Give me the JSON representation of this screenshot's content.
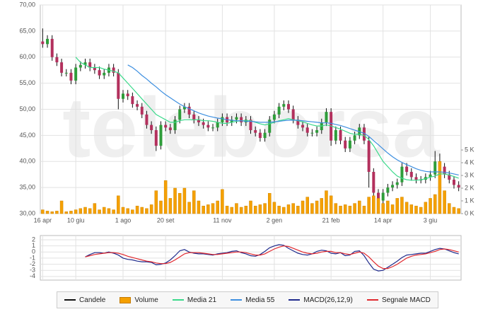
{
  "watermark": "teleborsa",
  "chart_data": [
    {
      "type": "candlestick",
      "categories": [
        "16 apr",
        null,
        null,
        null,
        null,
        null,
        null,
        "10 giu",
        null,
        null,
        null,
        null,
        null,
        null,
        null,
        null,
        null,
        "1 ago",
        null,
        null,
        null,
        null,
        null,
        null,
        null,
        null,
        "20 set",
        null,
        null,
        null,
        null,
        null,
        null,
        null,
        null,
        null,
        null,
        null,
        "11 nov",
        null,
        null,
        null,
        null,
        null,
        null,
        null,
        null,
        null,
        null,
        "2 gen",
        null,
        null,
        null,
        null,
        null,
        null,
        null,
        null,
        null,
        null,
        null,
        "21 feb",
        null,
        null,
        null,
        null,
        null,
        null,
        null,
        null,
        null,
        null,
        "14 apr",
        null,
        null,
        null,
        null,
        null,
        null,
        null,
        null,
        null,
        "3 giu",
        null,
        null,
        null,
        null,
        null,
        null
      ],
      "ylim": [
        30,
        70
      ],
      "yticks": [
        {
          "value": 30,
          "label": "30,00"
        },
        {
          "value": 35,
          "label": "35,00"
        },
        {
          "value": 40,
          "label": "40,00"
        },
        {
          "value": 45,
          "label": "45,00"
        },
        {
          "value": 50,
          "label": "50,00"
        },
        {
          "value": 55,
          "label": "55,00"
        },
        {
          "value": 60,
          "label": "60,00"
        },
        {
          "value": 65,
          "label": "65,00"
        },
        {
          "value": 70,
          "label": "70,00"
        }
      ],
      "y2lim": [
        0,
        16400
      ],
      "y2ticks": [
        {
          "value": 0,
          "label": "0 K"
        },
        {
          "value": 1000,
          "label": "1 K"
        },
        {
          "value": 2000,
          "label": "2 K"
        },
        {
          "value": 3000,
          "label": "3 K"
        },
        {
          "value": 4000,
          "label": "4 K"
        },
        {
          "value": 5000,
          "label": "5 K"
        }
      ],
      "grid": true,
      "up_color": "#2e9d3a",
      "down_color": "#b3305d",
      "series": [
        {
          "name": "Candele",
          "color": "#111111",
          "open": [
            63,
            62.5,
            63.5,
            60,
            59,
            57,
            57,
            55.5,
            58,
            58.5,
            59,
            58,
            57.5,
            56.5,
            57,
            58,
            57,
            52,
            53,
            52.5,
            51,
            50.5,
            49,
            47,
            46,
            43,
            47,
            46.5,
            46,
            48,
            50,
            50.5,
            49,
            48,
            47.5,
            47,
            46.5,
            46.5,
            47.5,
            48.5,
            47.5,
            48,
            48.5,
            47.5,
            48,
            46,
            45.5,
            44.5,
            45.5,
            48,
            49,
            50.5,
            51,
            50,
            48,
            47,
            46.5,
            45.5,
            45.5,
            46,
            47.5,
            49.5,
            44,
            46,
            44,
            42.5,
            44,
            45,
            46.5,
            44,
            38,
            34,
            32.5,
            34,
            35,
            35.5,
            36,
            39,
            38,
            37,
            36.5,
            36.5,
            37,
            37.5,
            40,
            39,
            37.5,
            36.5,
            35.5
          ],
          "high": [
            65.5,
            64.2,
            64.2,
            60.7,
            59.7,
            57.7,
            57.7,
            58.7,
            59.2,
            59.7,
            59.7,
            58.7,
            58.2,
            57.7,
            58.7,
            58.7,
            57.7,
            53.7,
            53.7,
            53.2,
            51.7,
            51.2,
            49.7,
            47.7,
            46.7,
            47.7,
            47.7,
            47.2,
            48.7,
            50.7,
            51.2,
            51.2,
            49.7,
            48.7,
            48.2,
            47.7,
            47.2,
            48.2,
            49.2,
            49.2,
            48.7,
            49.2,
            49.2,
            48.7,
            48.7,
            46.7,
            46.2,
            46.2,
            48.7,
            49.7,
            51.2,
            51.7,
            51.7,
            50.7,
            48.7,
            47.7,
            47.2,
            46.2,
            46.7,
            48.2,
            50.2,
            50.2,
            46.7,
            46.7,
            44.7,
            44.7,
            45.7,
            47.2,
            47.2,
            44.7,
            38.7,
            34.7,
            34.7,
            35.7,
            36.2,
            36.7,
            39.7,
            39.7,
            38.7,
            37.7,
            37.2,
            37.7,
            38.2,
            42,
            41.5,
            39.7,
            38.2,
            37.2,
            36.2
          ],
          "low": [
            61.8,
            61.8,
            59.3,
            58.3,
            56.3,
            56.3,
            54.8,
            54.8,
            57.3,
            57.8,
            57.3,
            56.8,
            55.8,
            55.8,
            56.3,
            56.3,
            50,
            51.3,
            51.8,
            50.3,
            49.8,
            48.3,
            46.3,
            45.3,
            42,
            42.3,
            45.8,
            45.3,
            45.3,
            47.3,
            49.3,
            48.3,
            47.3,
            46.8,
            46.3,
            45.8,
            45.8,
            45.8,
            46.8,
            46.8,
            46.8,
            47.3,
            46.8,
            46.8,
            45.3,
            44.8,
            43.8,
            43.8,
            44.8,
            47.3,
            48.3,
            49.8,
            49.3,
            47.3,
            46.3,
            45.8,
            44.8,
            44.8,
            44.8,
            45.3,
            46.8,
            43,
            43.3,
            43.3,
            41.8,
            41.8,
            43.3,
            44.3,
            43.3,
            35,
            33.3,
            31.8,
            31.8,
            33.3,
            34.3,
            34.8,
            35.3,
            37.3,
            36.3,
            35.8,
            35.8,
            35.8,
            36.3,
            36.8,
            38.3,
            36.8,
            35.8,
            34.8,
            34.3
          ],
          "close": [
            62.5,
            63.5,
            60,
            59,
            57,
            57,
            55.5,
            58,
            58.5,
            59,
            58,
            57.5,
            56.5,
            57,
            58,
            57,
            52,
            53,
            52.5,
            51,
            50.5,
            49,
            47,
            46,
            43,
            47,
            46.5,
            46,
            48,
            50,
            50.5,
            49,
            48,
            47.5,
            47,
            46.5,
            46.5,
            47.5,
            48.5,
            47.5,
            48,
            48.5,
            47.5,
            48,
            46,
            45.5,
            44.5,
            45.5,
            48,
            49,
            50.5,
            51,
            50,
            48,
            47,
            46.5,
            45.5,
            45.5,
            46,
            47.5,
            49.5,
            44,
            46,
            44,
            42.5,
            44,
            45,
            46.5,
            44,
            38,
            34,
            32.5,
            34,
            35,
            35.5,
            36,
            39,
            38,
            37,
            36.5,
            36.5,
            37,
            37.5,
            40,
            39,
            37.5,
            36.5,
            35.5,
            35
          ]
        },
        {
          "name": "Volume",
          "color": "#f5a000",
          "axis": "y2",
          "values": [
            300,
            200,
            150,
            200,
            1000,
            150,
            200,
            300,
            400,
            500,
            400,
            800,
            300,
            500,
            400,
            300,
            1400,
            500,
            400,
            300,
            600,
            500,
            400,
            700,
            1800,
            1000,
            2600,
            1200,
            2000,
            1600,
            2000,
            900,
            1800,
            1000,
            600,
            700,
            800,
            1000,
            1900,
            600,
            500,
            800,
            500,
            600,
            1000,
            600,
            700,
            800,
            1600,
            900,
            600,
            500,
            700,
            800,
            600,
            1000,
            1300,
            800,
            1000,
            1200,
            1800,
            1400,
            800,
            600,
            700,
            600,
            800,
            1000,
            600,
            1300,
            1400,
            1200,
            800,
            1000,
            700,
            1200,
            1300,
            900,
            700,
            600,
            500,
            900,
            1200,
            1500,
            4100,
            1800,
            800,
            500,
            400
          ]
        },
        {
          "name": "Media 21",
          "color": "#3ad98a",
          "values": [
            null,
            null,
            null,
            null,
            null,
            null,
            null,
            60,
            59,
            58.5,
            58,
            58,
            58,
            57.7,
            57.5,
            57.3,
            57,
            56,
            55,
            54,
            53,
            52,
            51,
            50,
            49,
            48.5,
            48,
            47.5,
            47.5,
            47.8,
            48,
            48,
            48,
            48,
            47.8,
            47.8,
            47.7,
            47.5,
            47.3,
            47.3,
            47.5,
            47.7,
            47.8,
            47.8,
            47.8,
            47.5,
            47.2,
            47,
            47.2,
            47.5,
            47.8,
            48,
            48.2,
            48,
            47.8,
            47.6,
            47.3,
            47,
            46.8,
            46.8,
            47,
            46.8,
            46.5,
            46.2,
            45.8,
            45.4,
            45.2,
            45.2,
            45,
            44.2,
            43,
            41.5,
            40,
            39,
            38,
            37.2,
            36.8,
            36.5,
            36.4,
            36.4,
            36.5,
            36.7,
            37,
            37.2,
            37.6,
            37.6,
            37.4,
            37.1,
            36.8
          ]
        },
        {
          "name": "Media 55",
          "color": "#3d8fe0",
          "values": [
            null,
            null,
            null,
            null,
            null,
            null,
            null,
            null,
            null,
            null,
            null,
            null,
            null,
            null,
            null,
            null,
            null,
            null,
            58.5,
            58,
            57.3,
            56.5,
            55.8,
            55,
            54.3,
            53.5,
            52.8,
            52.2,
            51.6,
            51,
            50.5,
            50.1,
            49.7,
            49.3,
            49,
            48.7,
            48.5,
            48.3,
            48.2,
            48,
            47.9,
            47.8,
            47.8,
            47.7,
            47.7,
            47.6,
            47.5,
            47.5,
            47.5,
            47.6,
            47.7,
            47.8,
            47.9,
            47.9,
            47.9,
            47.8,
            47.7,
            47.6,
            47.5,
            47.4,
            47.4,
            47.3,
            47.1,
            46.9,
            46.6,
            46.3,
            46,
            45.7,
            45.4,
            44.8,
            44,
            43.2,
            42.4,
            41.6,
            40.9,
            40.3,
            39.8,
            39.4,
            39,
            38.6,
            38.3,
            38.1,
            38,
            38,
            38,
            37.9,
            37.8,
            37.6,
            37.4
          ]
        }
      ]
    },
    {
      "type": "line",
      "ylim": [
        -4.6,
        2.7
      ],
      "yticks": [
        2,
        1,
        0,
        -1,
        -2,
        -3,
        -4
      ],
      "grid": true,
      "series": [
        {
          "name": "MACD(26,12,9)",
          "color": "#1f2a8c",
          "values": [
            null,
            null,
            null,
            null,
            null,
            null,
            null,
            null,
            null,
            -0.8,
            -0.4,
            -0.1,
            -0.1,
            -0.2,
            0,
            -0.2,
            -0.5,
            -1,
            -1.2,
            -1.3,
            -1.5,
            -1.6,
            -1.6,
            -1.7,
            -2.1,
            -2,
            -1.8,
            -1.3,
            -0.6,
            0.2,
            0.4,
            0,
            -0.2,
            -0.3,
            -0.3,
            -0.4,
            -0.5,
            -0.3,
            -0.2,
            -0.1,
            0.1,
            0.2,
            -0.1,
            -0.3,
            -0.6,
            -0.7,
            -0.4,
            0.1,
            0.7,
            1,
            1.2,
            1.1,
            0.6,
            0.2,
            -0.2,
            -0.4,
            -0.5,
            -0.3,
            0.1,
            0.3,
            0.2,
            -0.2,
            -0.3,
            -0.1,
            -0.6,
            -0.5,
            0.1,
            0.2,
            -0.6,
            -1.8,
            -2.8,
            -3.1,
            -3,
            -2.5,
            -2,
            -1.5,
            -0.9,
            -0.5,
            -0.4,
            -0.3,
            -0.2,
            -0.2,
            0.1,
            0.4,
            0.6,
            0.5,
            0.2,
            -0.1,
            -0.3
          ]
        },
        {
          "name": "Segnale MACD",
          "color": "#e0282e",
          "values": [
            null,
            null,
            null,
            null,
            null,
            null,
            null,
            null,
            null,
            -0.8,
            -0.6,
            -0.4,
            -0.3,
            -0.2,
            -0.1,
            -0.1,
            -0.2,
            -0.4,
            -0.7,
            -0.9,
            -1.1,
            -1.3,
            -1.5,
            -1.6,
            -1.8,
            -1.9,
            -1.9,
            -1.7,
            -1.3,
            -0.8,
            -0.3,
            -0.1,
            -0.1,
            -0.1,
            -0.2,
            -0.3,
            -0.4,
            -0.4,
            -0.3,
            -0.2,
            -0.1,
            0,
            0,
            -0.1,
            -0.3,
            -0.5,
            -0.5,
            -0.3,
            0.1,
            0.5,
            0.8,
            1,
            0.9,
            0.6,
            0.3,
            0,
            -0.2,
            -0.3,
            -0.2,
            0,
            0.1,
            0.1,
            -0.1,
            -0.1,
            -0.3,
            -0.4,
            -0.2,
            0,
            -0.2,
            -0.8,
            -1.6,
            -2.3,
            -2.7,
            -2.7,
            -2.4,
            -2,
            -1.5,
            -1,
            -0.7,
            -0.5,
            -0.4,
            -0.3,
            -0.1,
            0.1,
            0.4,
            0.5,
            0.4,
            0.2,
            0
          ]
        }
      ]
    }
  ]
}
